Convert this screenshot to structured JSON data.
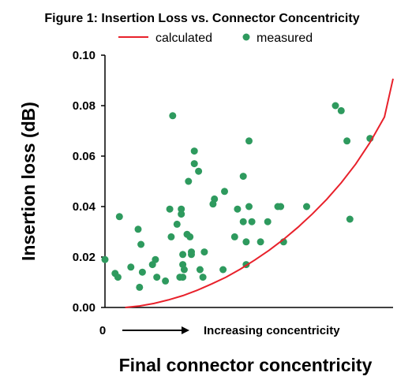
{
  "chart_data": {
    "type": "scatter",
    "title": "Figure 1:  Insertion Loss vs. Connector Concentricity",
    "ylabel": "Insertion loss (dB)",
    "xlabel": "Final connector concentricity",
    "x_start_label": "0",
    "x_direction_label": "Increasing concentricity",
    "ylim": [
      0,
      0.1
    ],
    "xlim": [
      0,
      1
    ],
    "yticks": [
      "0.00",
      "0.02",
      "0.04",
      "0.06",
      "0.08",
      "0.10"
    ],
    "yticks_values": [
      0,
      0.02,
      0.04,
      0.06,
      0.08,
      0.1
    ],
    "legend": {
      "placement": "top",
      "calculated_label": "calculated",
      "measured_label": "measured"
    },
    "colors": {
      "calculated": "#e8212b",
      "measured": "#2e9a5e"
    },
    "series": [
      {
        "name": "calculated",
        "kind": "line",
        "x": [
          0.07,
          0.12,
          0.17,
          0.22,
          0.27,
          0.32,
          0.37,
          0.42,
          0.47,
          0.52,
          0.57,
          0.62,
          0.67,
          0.72,
          0.77,
          0.82,
          0.87,
          0.92,
          0.97,
          1.0
        ],
        "y": [
          0.0,
          0.0006,
          0.0016,
          0.003,
          0.0047,
          0.0068,
          0.0093,
          0.012,
          0.0152,
          0.0188,
          0.0227,
          0.027,
          0.0318,
          0.0371,
          0.0429,
          0.0494,
          0.0568,
          0.0654,
          0.0755,
          0.0907
        ]
      },
      {
        "name": "measured",
        "kind": "points",
        "x": [
          0.0,
          0.035,
          0.045,
          0.05,
          0.09,
          0.115,
          0.12,
          0.125,
          0.13,
          0.165,
          0.175,
          0.18,
          0.21,
          0.225,
          0.23,
          0.235,
          0.25,
          0.26,
          0.265,
          0.265,
          0.27,
          0.27,
          0.27,
          0.275,
          0.285,
          0.29,
          0.295,
          0.3,
          0.3,
          0.31,
          0.31,
          0.325,
          0.33,
          0.34,
          0.345,
          0.375,
          0.38,
          0.41,
          0.415,
          0.45,
          0.46,
          0.48,
          0.48,
          0.49,
          0.49,
          0.5,
          0.5,
          0.51,
          0.54,
          0.565,
          0.6,
          0.61,
          0.62,
          0.7,
          0.8,
          0.82,
          0.85,
          0.84,
          0.92
        ],
        "y": [
          0.019,
          0.0135,
          0.012,
          0.036,
          0.016,
          0.031,
          0.008,
          0.025,
          0.014,
          0.017,
          0.019,
          0.012,
          0.0105,
          0.039,
          0.028,
          0.076,
          0.033,
          0.012,
          0.039,
          0.037,
          0.021,
          0.017,
          0.012,
          0.015,
          0.029,
          0.05,
          0.028,
          0.022,
          0.021,
          0.062,
          0.057,
          0.054,
          0.015,
          0.012,
          0.022,
          0.041,
          0.043,
          0.015,
          0.046,
          0.028,
          0.039,
          0.052,
          0.034,
          0.017,
          0.026,
          0.066,
          0.04,
          0.034,
          0.026,
          0.034,
          0.04,
          0.04,
          0.026,
          0.04,
          0.08,
          0.078,
          0.035,
          0.066,
          0.067
        ]
      }
    ]
  }
}
